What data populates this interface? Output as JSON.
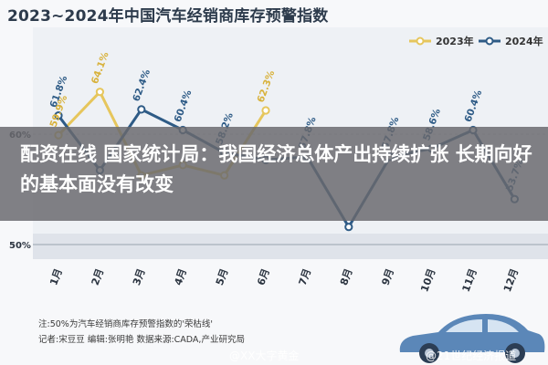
{
  "header": {
    "title": "2023~2024年中国汽车经销商库存预警指数"
  },
  "headline": "配资在线 国家统计局：我国经济总体产出持续扩张 长期向好的基本面没有改变",
  "notes": {
    "line1": "注:50%为汽车经销商库存预警指数的'荣枯线'",
    "line2": "记者:宋豆豆   编辑:张明艳   数据来源:CADA,产业研究局"
  },
  "watermarks": {
    "mid": "@XX大字黄金",
    "right": "@21世纪经济报道"
  },
  "colors": {
    "series_2023": "#e6c65c",
    "series_2024": "#2e5b86"
  },
  "chart_data": {
    "type": "line",
    "title": "2023~2024年中国汽车经销商库存预警指数",
    "categories": [
      "1月",
      "2月",
      "3月",
      "4月",
      "5月",
      "6月",
      "7月",
      "8月",
      "9月",
      "10月",
      "11月",
      "12月"
    ],
    "y_axis_labels": [
      "60%",
      "50%"
    ],
    "legend_placement": "top-right",
    "series": [
      {
        "name": "2023年",
        "values": [
          59.9,
          64.1,
          56.0,
          57.0,
          56.0,
          62.3,
          null,
          null,
          null,
          null,
          null,
          null
        ],
        "labels": [
          "59.9%",
          "64.1%",
          "",
          "",
          "",
          "62.3%",
          "",
          "",
          "",
          "",
          "",
          ""
        ]
      },
      {
        "name": "2024年",
        "values": [
          61.8,
          56.5,
          62.4,
          60.4,
          58.2,
          57.5,
          57.8,
          51.0,
          57.8,
          58.6,
          60.4,
          53.7
        ],
        "labels": [
          "61.8%",
          "",
          "62.4%",
          "60.4%",
          "58.2%",
          "",
          "57.8%",
          "",
          "57.8%",
          "58.6%",
          "60.4%",
          "53.7%"
        ]
      }
    ]
  }
}
